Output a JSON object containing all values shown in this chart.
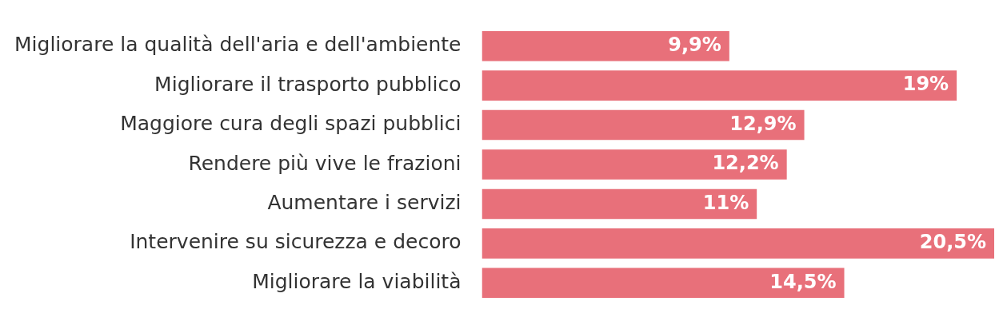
{
  "chart_data": {
    "type": "bar",
    "orientation": "horizontal",
    "categories": [
      "Migliorare la qualità dell'aria e dell'ambiente",
      "Migliorare il trasporto pubblico",
      "Maggiore cura degli spazi pubblici",
      "Rendere più vive le frazioni",
      "Aumentare i servizi",
      "Intervenire su sicurezza e decoro",
      "Migliorare la viabilità"
    ],
    "values": [
      9.9,
      19,
      12.9,
      12.2,
      11,
      20.5,
      14.5
    ],
    "value_labels": [
      "9,9%",
      "19%",
      "12,9%",
      "12,2%",
      "11%",
      "20,5%",
      "14,5%"
    ],
    "color": "#e8707a"
  }
}
